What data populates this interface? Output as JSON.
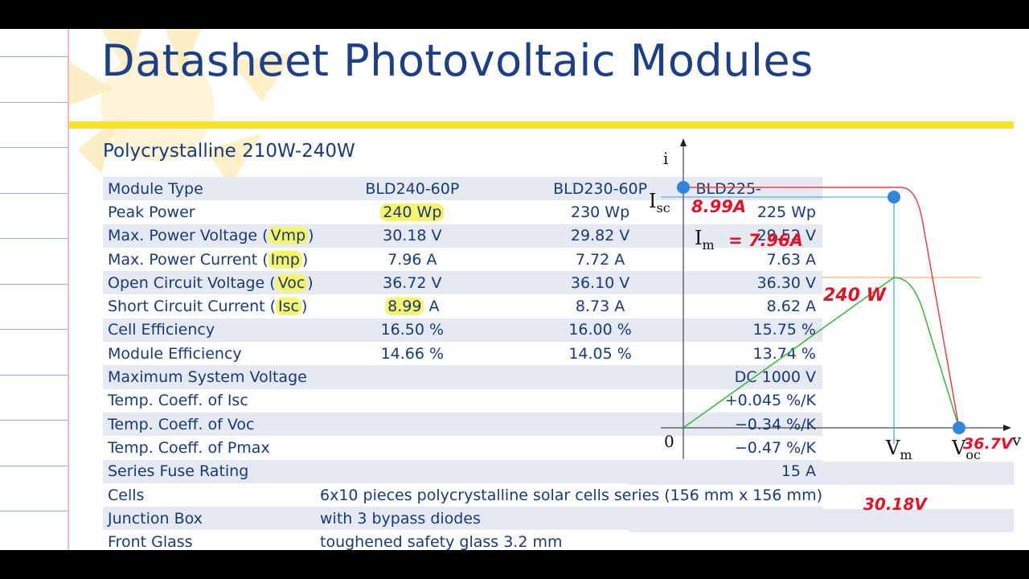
{
  "title": "Datasheet Photovoltaic Modules",
  "subtitle": "Polycrystalline 210W-240W",
  "header": {
    "label": "Module Type",
    "models": [
      "BLD240-60P",
      "BLD230-60P",
      "BLD225-"
    ]
  },
  "rows": [
    {
      "label": "Peak Power",
      "values": [
        "240 Wp",
        "230 Wp",
        "225 Wp"
      ]
    },
    {
      "label_pre": "Max. Power Voltage (",
      "symbol": "Vmp",
      "label_post": ")",
      "values": [
        "30.18 V",
        "29.82 V",
        "29.52 V"
      ]
    },
    {
      "label_pre": "Max. Power Current (",
      "symbol": "Imp",
      "label_post": ")",
      "values": [
        "7.96 A",
        "7.72 A",
        "7.63 A"
      ]
    },
    {
      "label_pre": "Open Circuit Voltage (",
      "symbol": "Voc",
      "label_post": ")",
      "values": [
        "36.72 V",
        "36.10 V",
        "36.30 V"
      ]
    },
    {
      "label_pre": "Short Circuit Current (",
      "symbol": "Isc",
      "label_post": ")",
      "values": [
        "8.99",
        "8.73 A",
        "8.62 A"
      ],
      "unit0": "A"
    },
    {
      "label": "Cell Efficiency",
      "values": [
        "16.50 %",
        "16.00 %",
        "15.75 %"
      ]
    },
    {
      "label": "Module Efficiency",
      "values": [
        "14.66 %",
        "14.05 %",
        "13.74 %"
      ]
    }
  ],
  "single_rows": [
    {
      "label": "Maximum System Voltage",
      "value": "DC 1000 V"
    },
    {
      "label": "Temp. Coeff. of Isc",
      "value": "+0.045 %/K"
    },
    {
      "label": "Temp. Coeff. of Voc",
      "value": "−0.34 %/K"
    },
    {
      "label": "Temp. Coeff. of Pmax",
      "value": "−0.47 %/K"
    },
    {
      "label": "Series Fuse Rating",
      "value": "15 A"
    }
  ],
  "text_rows": [
    {
      "label": "Cells",
      "value": "6x10 pieces polycrystalline solar cells series (156 mm x 156 mm)"
    },
    {
      "label": "Junction Box",
      "value": "with 3 bypass diodes"
    },
    {
      "label": "Front Glass",
      "value": "toughened safety glass 3.2 mm"
    }
  ],
  "graph": {
    "axis_y": "i",
    "axis_x": "v",
    "origin": "0",
    "isc_label": "I",
    "isc_sub": "sc",
    "im_label": "I",
    "im_sub": "m",
    "vm_label": "V",
    "vm_sub": "m",
    "voc_label": "V",
    "voc_sub": "oc",
    "note_isc": "8.99A",
    "note_im": "= 7.96A",
    "note_power": "240 W",
    "note_voc": "36.7V",
    "note_vm": "30.18V",
    "colors": {
      "iv_curve": "#d9454f",
      "pv_curve": "#3bb33b",
      "guide": "#3fa0d8",
      "power_line": "#e8a060",
      "dot": "#2e86de",
      "ink": "#e2142a"
    }
  }
}
